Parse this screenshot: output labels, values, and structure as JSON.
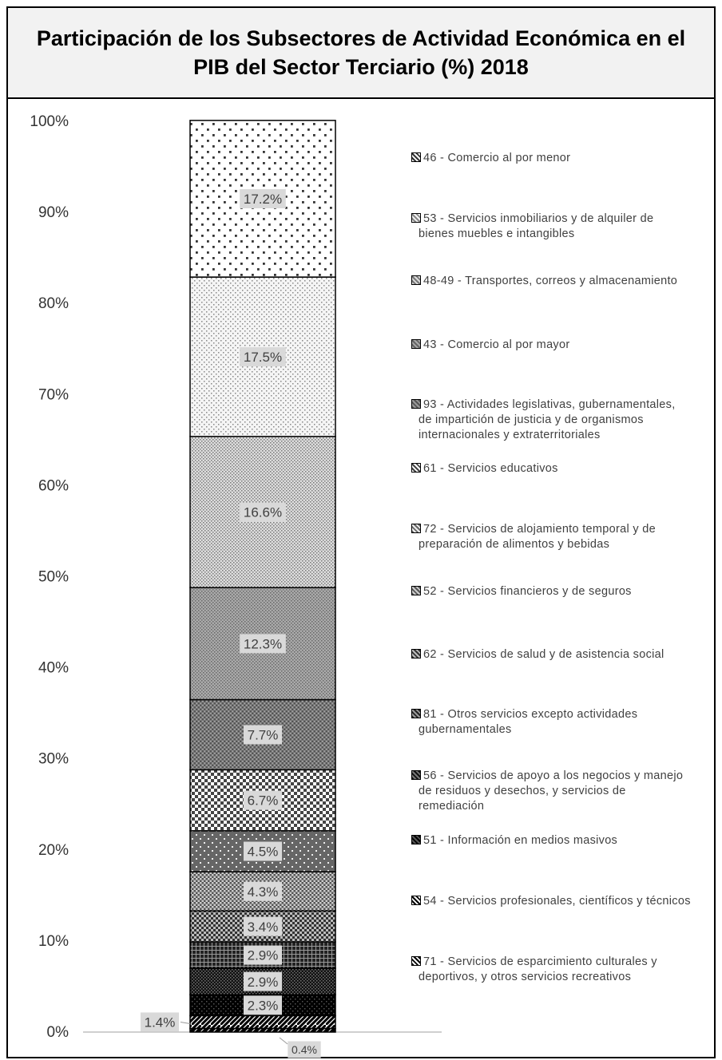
{
  "chart_data": {
    "type": "bar",
    "stacked": true,
    "title": "Participación de los Subsectores de Actividad Económica en el PIB del Sector Terciario (%) 2018",
    "ylim": [
      0,
      100
    ],
    "y_ticks": [
      "0%",
      "10%",
      "20%",
      "30%",
      "40%",
      "50%",
      "60%",
      "70%",
      "80%",
      "90%",
      "100%"
    ],
    "grid": false,
    "legend_position": "right",
    "series": [
      {
        "name": "71 - Servicios de esparcimiento culturales y deportivos, y otros servicios recreativos",
        "value": 0.4,
        "label": "0.4%"
      },
      {
        "name": "54 - Servicios profesionales, científicos y técnicos",
        "value": 1.4,
        "label": "1.4%"
      },
      {
        "name": "51 - Información en medios masivos",
        "value": 2.3,
        "label": "2.3%"
      },
      {
        "name": "56 - Servicios de apoyo a los negocios y manejo de residuos y desechos, y servicios de remediación",
        "value": 2.9,
        "label": "2.9%"
      },
      {
        "name": "81 - Otros servicios excepto actividades gubernamentales",
        "value": 2.9,
        "label": "2.9%"
      },
      {
        "name": "62 - Servicios de salud y de asistencia social",
        "value": 3.4,
        "label": "3.4%"
      },
      {
        "name": "52 - Servicios financieros y de seguros",
        "value": 4.3,
        "label": "4.3%"
      },
      {
        "name": "72 - Servicios de alojamiento temporal y de preparación de alimentos y bebidas",
        "value": 4.5,
        "label": "4.5%"
      },
      {
        "name": "61 - Servicios educativos",
        "value": 6.7,
        "label": "6.7%"
      },
      {
        "name": "93 - Actividades legislativas, gubernamentales, de impartición de justicia y de organismos internacionales y extraterritoriales",
        "value": 7.7,
        "label": "7.7%"
      },
      {
        "name": "43 - Comercio al por mayor",
        "value": 12.3,
        "label": "12.3%"
      },
      {
        "name": "48-49 - Transportes, correos y almacenamiento",
        "value": 16.6,
        "label": "16.6%"
      },
      {
        "name": "53 - Servicios inmobiliarios y de alquiler de bienes muebles e intangibles",
        "value": 17.5,
        "label": "17.5%"
      },
      {
        "name": "46 - Comercio al por menor",
        "value": 17.2,
        "label": "17.2%"
      }
    ],
    "legend": [
      {
        "lines": [
          "46 - Comercio al por menor"
        ]
      },
      {
        "lines": [
          "53 - Servicios inmobiliarios y de alquiler de",
          "bienes muebles e intangibles"
        ]
      },
      {
        "lines": [
          "48-49 - Transportes, correos y almacenamiento"
        ]
      },
      {
        "lines": [
          "43 - Comercio al por mayor"
        ]
      },
      {
        "lines": [
          "93 - Actividades legislativas, gubernamentales,",
          "de impartición de justicia y de organismos",
          "internacionales y extraterritoriales"
        ]
      },
      {
        "lines": [
          "61 - Servicios educativos"
        ]
      },
      {
        "lines": [
          "72 - Servicios de alojamiento temporal y de",
          "preparación de alimentos y bebidas"
        ]
      },
      {
        "lines": [
          "52 - Servicios financieros y de seguros"
        ]
      },
      {
        "lines": [
          "62 - Servicios de salud y de asistencia social"
        ]
      },
      {
        "lines": [
          "81 - Otros servicios excepto actividades",
          "gubernamentales"
        ]
      },
      {
        "lines": [
          "56 - Servicios de apoyo a los negocios y manejo",
          "de residuos y desechos, y servicios de",
          "remediación"
        ]
      },
      {
        "lines": [
          "51 - Información en medios masivos"
        ]
      },
      {
        "lines": [
          "54 - Servicios profesionales, científicos y técnicos"
        ]
      },
      {
        "lines": [
          "71 - Servicios de esparcimiento culturales y",
          "deportivos, y otros servicios recreativos"
        ]
      }
    ]
  },
  "colors": {
    "label_bg": "#d9d9d9",
    "label_text": "#404040",
    "title_bg": "#f2f2f2",
    "axis_line": "#bfbfbf"
  }
}
